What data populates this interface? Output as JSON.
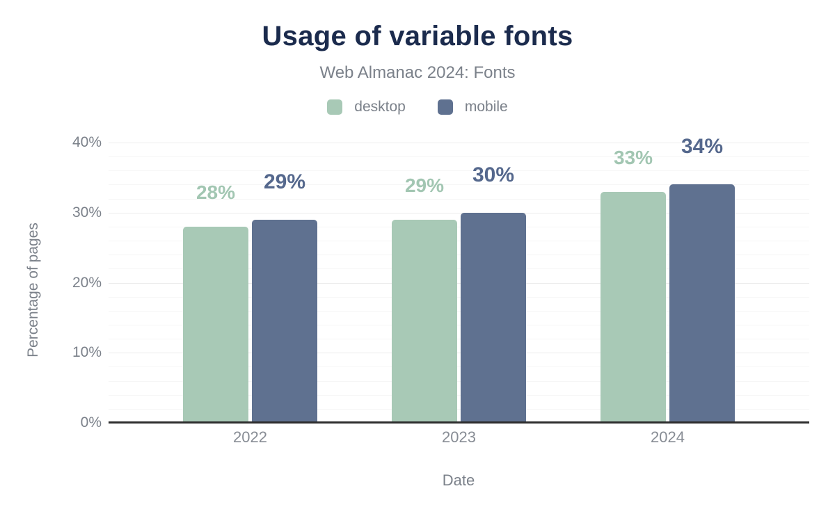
{
  "chart_data": {
    "type": "bar",
    "title": "Usage of variable fonts",
    "subtitle": "Web Almanac 2024: Fonts",
    "xlabel": "Date",
    "ylabel": "Percentage of pages",
    "categories": [
      "2022",
      "2023",
      "2024"
    ],
    "series": [
      {
        "name": "desktop",
        "color": "#a8c9b6",
        "label_color": "#a2c6b2",
        "values": [
          28,
          29,
          33
        ],
        "labels": [
          "28%",
          "29%",
          "33%"
        ]
      },
      {
        "name": "mobile",
        "color": "#5f7190",
        "label_color": "#55688d",
        "values": [
          29,
          30,
          34
        ],
        "labels": [
          "29%",
          "30%",
          "34%"
        ]
      }
    ],
    "ylim": [
      0,
      40
    ],
    "y_ticks": [
      {
        "value": 0,
        "label": "0%"
      },
      {
        "value": 10,
        "label": "10%"
      },
      {
        "value": 20,
        "label": "20%"
      },
      {
        "value": 30,
        "label": "30%"
      },
      {
        "value": 40,
        "label": "40%"
      }
    ],
    "grid": {
      "orientation": "horizontal",
      "major_step": 10,
      "minor_step": 2
    },
    "legend_position": "top"
  }
}
